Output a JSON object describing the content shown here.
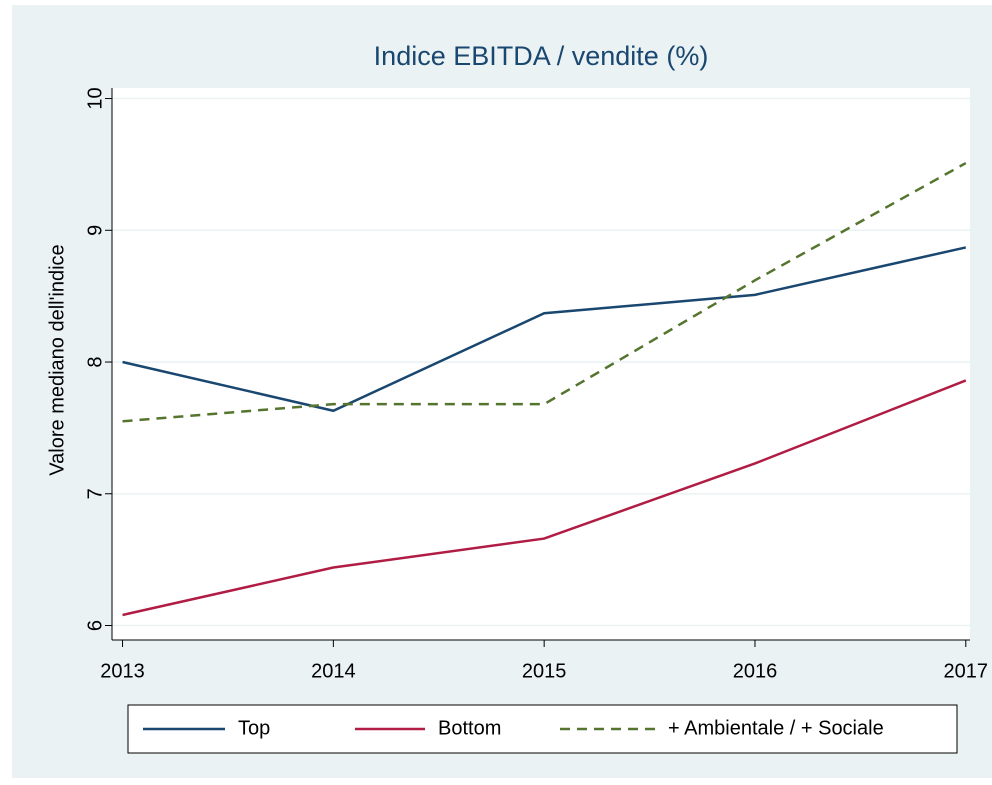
{
  "chart_data": {
    "type": "line",
    "title": "Indice EBITDA / vendite (%)",
    "y_label": "Valore mediano dell'indice",
    "x": [
      2013,
      2014,
      2015,
      2016,
      2017
    ],
    "xlim": [
      2012.95,
      2017.02
    ],
    "xticks": [
      2013,
      2014,
      2015,
      2016,
      2017
    ],
    "ylim": [
      5.89,
      10.08
    ],
    "yticks": [
      6,
      7,
      8,
      9,
      10
    ],
    "grid": true,
    "legend": "bottom",
    "series": [
      {
        "name": "Top",
        "color": "#1a476f",
        "dashed": false,
        "values": [
          8.0,
          7.63,
          8.37,
          8.51,
          8.87
        ]
      },
      {
        "name": "Bottom",
        "color": "#b01c44",
        "dashed": false,
        "values": [
          6.08,
          6.44,
          6.66,
          7.23,
          7.86
        ]
      },
      {
        "name": "+ Ambientale / + Sociale",
        "color": "#55752f",
        "dashed": true,
        "values": [
          7.55,
          7.68,
          7.68,
          8.62,
          9.51
        ]
      }
    ]
  }
}
